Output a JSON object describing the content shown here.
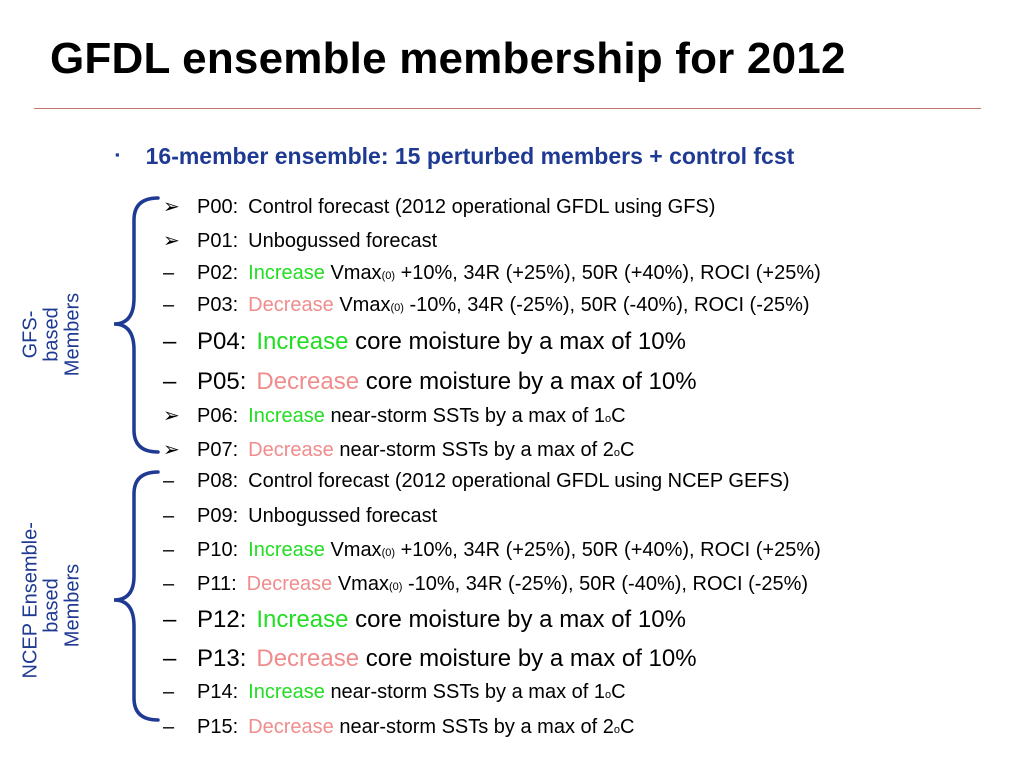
{
  "title": "GFDL ensemble membership for 2012",
  "main_bullet": {
    "marker": "▪",
    "text": "16-member ensemble:  15 perturbed members + control fcst"
  },
  "group_labels": {
    "gfs": [
      "GFS-",
      "based",
      "Members"
    ],
    "ncep": [
      "NCEP Ensemble-",
      "based",
      "Members"
    ]
  },
  "words": {
    "increase": "Increase",
    "decrease": "Decrease"
  },
  "rows": [
    {
      "marker": "➢",
      "id": "P00:",
      "pre": "Control forecast (2012 operational GFDL using GFS)"
    },
    {
      "marker": "➢",
      "id": "P01:",
      "pre": "Unbogussed forecast"
    },
    {
      "marker": "–",
      "id": "P02:",
      "word": "Increase",
      "a": "Vmax",
      "sub": "(0)",
      "b": "+10%, 34R (+25%), 50R (+40%), ROCI (+25%)"
    },
    {
      "marker": "–",
      "id": "P03:",
      "word": "Decrease",
      "a": "Vmax",
      "sub": "(0)",
      "b": "-10%, 34R (-25%), 50R (-40%), ROCI (-25%)"
    },
    {
      "marker": "–",
      "id": "P04:",
      "word": "Increase",
      "a": "core moisture by a max of 10%"
    },
    {
      "marker": "–",
      "id": "P05:",
      "word": "Decrease",
      "a": "core moisture by a max of 10%"
    },
    {
      "marker": "➢",
      "id": "P06:",
      "word": "Increase",
      "a": "near-storm SSTs by a max of 1",
      "sup": "o",
      "b": "C"
    },
    {
      "marker": "➢",
      "id": "P07:",
      "word": "Decrease",
      "a": "near-storm SSTs by a max of 2",
      "sup": "o",
      "b": "C"
    },
    {
      "marker": "–",
      "id": "P08:",
      "pre": "Control forecast (2012 operational GFDL using NCEP GEFS)"
    },
    {
      "marker": "–",
      "id": "P09:",
      "pre": "Unbogussed forecast"
    },
    {
      "marker": "–",
      "id": "P10:",
      "word": "Increase",
      "a": "Vmax",
      "sub": "(0)",
      "b": "+10%, 34R (+25%), 50R (+40%), ROCI (+25%)"
    },
    {
      "marker": "–",
      "id": "P11:",
      "word": "Decrease",
      "a": "Vmax",
      "sub": "(0)",
      "b": "-10%, 34R (-25%), 50R (-40%), ROCI (-25%)"
    },
    {
      "marker": "–",
      "id": "P12:",
      "word": "Increase",
      "a": "core moisture by a max of 10%"
    },
    {
      "marker": "–",
      "id": "P13:",
      "word": "Decrease",
      "a": "core moisture by a max of 10%"
    },
    {
      "marker": "–",
      "id": "P14:",
      "word": "Increase",
      "a": "near-storm SSTs by a max of 1",
      "sup": "o",
      "b": "C"
    },
    {
      "marker": "–",
      "id": "P15:",
      "word": "Decrease",
      "a": "near-storm SSTs by a max of 2",
      "sup": "o",
      "b": "C"
    }
  ],
  "colors": {
    "title_rule": "#c9756f",
    "accent_blue": "#1f3a93",
    "increase_green": "#22dd22",
    "decrease_pink": "#f08c8c"
  }
}
